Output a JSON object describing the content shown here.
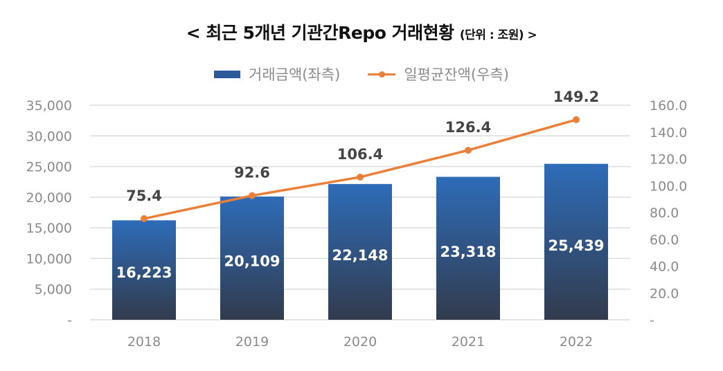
{
  "chart_data": {
    "type": "bar+line",
    "title": "< 최근 5개년 기관간Repo 거래현황",
    "unit": "(단위 : 조원) >",
    "categories": [
      "2018",
      "2019",
      "2020",
      "2021",
      "2022"
    ],
    "series": [
      {
        "name": "거래금액(좌측)",
        "type": "bar",
        "axis": "left",
        "values": [
          16223,
          20109,
          22148,
          23318,
          25439
        ],
        "labels": [
          "16,223",
          "20,109",
          "22,148",
          "23,318",
          "25,439"
        ],
        "color": "#2a5a9a"
      },
      {
        "name": "일평균잔액(우측)",
        "type": "line",
        "axis": "right",
        "values": [
          75.4,
          92.6,
          106.4,
          126.4,
          149.2
        ],
        "labels": [
          "75.4",
          "92.6",
          "106.4",
          "126.4",
          "149.2"
        ],
        "color": "#e8803a"
      }
    ],
    "left_axis": {
      "ylim": [
        0,
        35000
      ],
      "ticks": [
        "-",
        "5,000",
        "10,000",
        "15,000",
        "20,000",
        "25,000",
        "30,000",
        "35,000"
      ]
    },
    "right_axis": {
      "ylim": [
        0,
        160
      ],
      "ticks": [
        "-",
        "20.0",
        "40.0",
        "60.0",
        "80.0",
        "100.0",
        "120.0",
        "140.0",
        "160.0"
      ]
    },
    "grid": true,
    "legend": "top-center"
  }
}
